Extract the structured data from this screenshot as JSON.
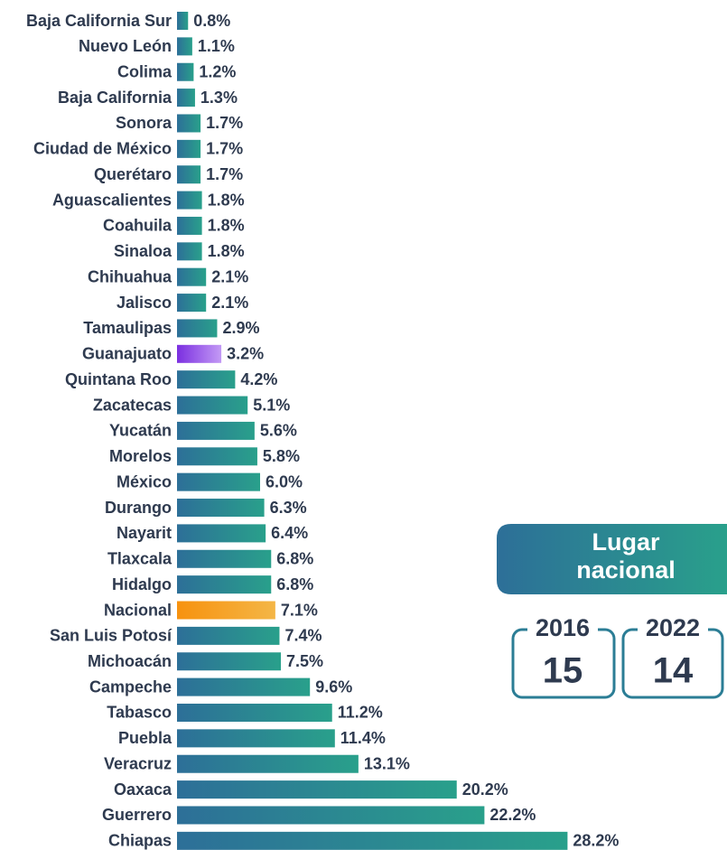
{
  "chart_data": {
    "type": "barh",
    "categories": [
      "Baja California Sur",
      "Nuevo León",
      "Colima",
      "Baja California",
      "Sonora",
      "Ciudad de México",
      "Querétaro",
      "Aguascalientes",
      "Coahuila",
      "Sinaloa",
      "Chihuahua",
      "Jalisco",
      "Tamaulipas",
      "Guanajuato",
      "Quintana Roo",
      "Zacatecas",
      "Yucatán",
      "Morelos",
      "México",
      "Durango",
      "Nayarit",
      "Tlaxcala",
      "Hidalgo",
      "Nacional",
      "San Luis Potosí",
      "Michoacán",
      "Campeche",
      "Tabasco",
      "Puebla",
      "Veracruz",
      "Oaxaca",
      "Guerrero",
      "Chiapas"
    ],
    "values": [
      0.8,
      1.1,
      1.2,
      1.3,
      1.7,
      1.7,
      1.7,
      1.8,
      1.8,
      1.8,
      2.1,
      2.1,
      2.9,
      3.2,
      4.2,
      5.1,
      5.6,
      5.8,
      6.0,
      6.3,
      6.4,
      6.8,
      6.8,
      7.1,
      7.4,
      7.5,
      9.6,
      11.2,
      11.4,
      13.1,
      20.2,
      22.2,
      28.2
    ],
    "value_labels": [
      "0.8%",
      "1.1%",
      "1.2%",
      "1.3%",
      "1.7%",
      "1.7%",
      "1.7%",
      "1.8%",
      "1.8%",
      "1.8%",
      "2.1%",
      "2.1%",
      "2.9%",
      "3.2%",
      "4.2%",
      "5.1%",
      "5.6%",
      "5.8%",
      "6.0%",
      "6.3%",
      "6.4%",
      "6.8%",
      "6.8%",
      "7.1%",
      "7.4%",
      "7.5%",
      "9.6%",
      "11.2%",
      "11.4%",
      "13.1%",
      "20.2%",
      "22.2%",
      "28.2%"
    ],
    "color": [
      "#2d6f98",
      "#29a08b"
    ],
    "highlights": [
      {
        "index": 13,
        "color": [
          "#7b2fe0",
          "#c39af5"
        ]
      },
      {
        "index": 23,
        "color": [
          "#f7920f",
          "#f4b646"
        ]
      }
    ],
    "xlim": [
      0,
      30
    ]
  },
  "panel": {
    "title": [
      "Lugar",
      "nacional"
    ],
    "items": [
      {
        "year": "2016",
        "rank": 15
      },
      {
        "year": "2022",
        "rank": 14
      }
    ]
  }
}
